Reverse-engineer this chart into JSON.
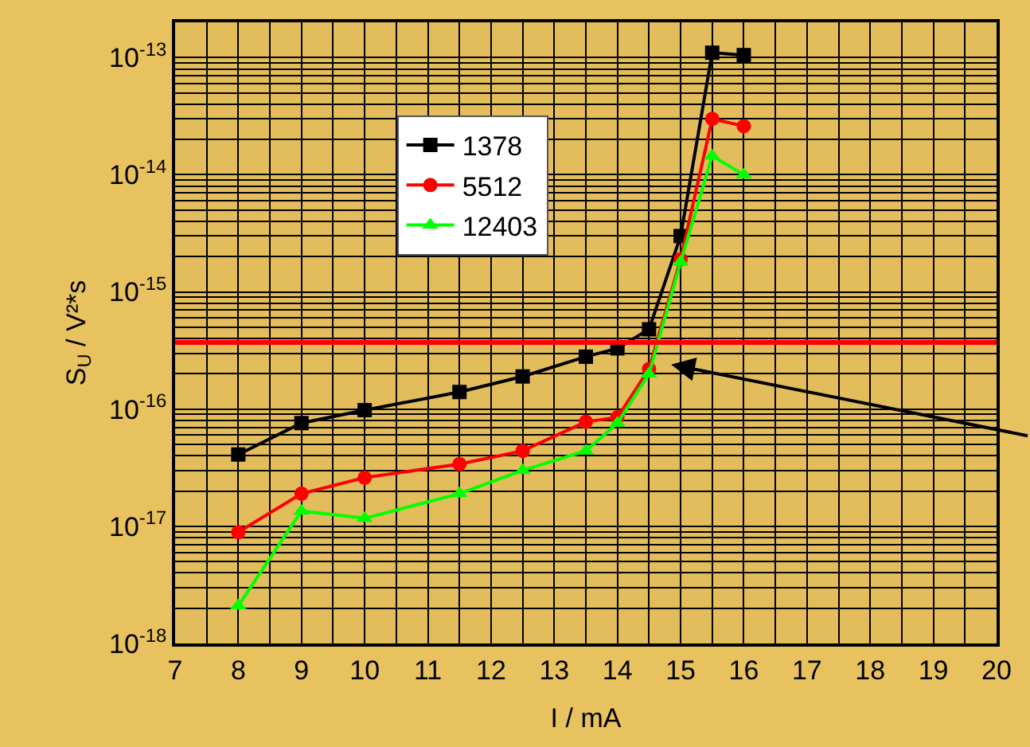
{
  "chart_data": {
    "type": "line",
    "xlabel": "I / mA",
    "ylabel": "S$_{U}$ / V²*s",
    "x": [
      8,
      9,
      10,
      11.5,
      12.5,
      13.5,
      14,
      14.5,
      15,
      15.5,
      16
    ],
    "series": [
      {
        "name": "1378",
        "color": "#000000",
        "marker": "square",
        "values": [
          4.1e-17,
          7.6e-17,
          9.8e-17,
          1.4e-16,
          1.9e-16,
          2.8e-16,
          3.3e-16,
          4.8e-16,
          3e-15,
          1.1e-13,
          1.05e-13
        ]
      },
      {
        "name": "5512",
        "color": "#ff0000",
        "marker": "circle",
        "values": [
          8.9e-18,
          1.9e-17,
          2.6e-17,
          3.4e-17,
          4.4e-17,
          7.8e-17,
          8.5e-17,
          2.2e-16,
          1.9e-15,
          3e-14,
          2.6e-14
        ]
      },
      {
        "name": "12403",
        "color": "#00ff00",
        "marker": "triangle",
        "values": [
          2.1e-18,
          1.35e-17,
          1.17e-17,
          1.9e-17,
          3e-17,
          4.4e-17,
          7.6e-17,
          2e-16,
          1.8e-15,
          1.45e-14,
          1e-14
        ]
      }
    ],
    "log": "y",
    "xlim": [
      7,
      20
    ],
    "xticks": [
      7,
      8,
      9,
      10,
      11,
      12,
      13,
      14,
      15,
      16,
      17,
      18,
      19,
      20
    ],
    "ylim": [
      1e-18,
      2e-13
    ],
    "yticks": [
      {
        "value": 1e-18,
        "label": "10$^{-18}$"
      },
      {
        "value": 1e-17,
        "label": "10$^{-17}$"
      },
      {
        "value": 1e-16,
        "label": "10$^{-16}$"
      },
      {
        "value": 1e-15,
        "label": "10$^{-15}$"
      },
      {
        "value": 1e-14,
        "label": "10$^{-14}$"
      },
      {
        "value": 1e-13,
        "label": "10$^{-13}$"
      }
    ],
    "ref_lines": [
      {
        "axis": "y",
        "value": 3.7e-16,
        "color": "#ff0000"
      }
    ],
    "grid": true,
    "legend": "top",
    "line_style": "solid"
  }
}
